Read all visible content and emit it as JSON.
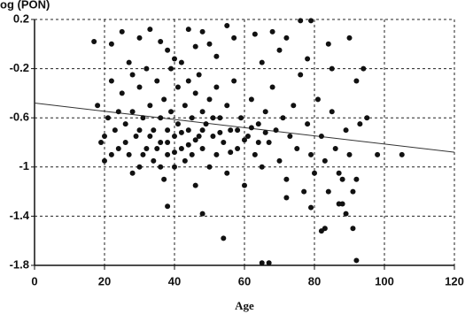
{
  "chart_data": {
    "type": "scatter",
    "y_label": "og (PON)",
    "x_label": "Age",
    "xlim": [
      0,
      120
    ],
    "xticks": [
      0,
      20,
      40,
      60,
      80,
      100,
      120
    ],
    "ylim": [
      -1.8,
      0.2
    ],
    "yticks": [
      0.2,
      -0.2,
      -0.6,
      -1,
      -1.4,
      -1.8
    ],
    "grid": true,
    "color": "#111111",
    "x": [
      17,
      22,
      25,
      27,
      30,
      33,
      36,
      38,
      40,
      44,
      46,
      48,
      50,
      52,
      55,
      57,
      63,
      65,
      68,
      70,
      72,
      76,
      79,
      78,
      84,
      85,
      90,
      92,
      94,
      18,
      19,
      20,
      21,
      22,
      23,
      24,
      25,
      26,
      27,
      28,
      28,
      29,
      30,
      30,
      31,
      32,
      32,
      33,
      34,
      34,
      35,
      36,
      36,
      37,
      37,
      38,
      38,
      39,
      39,
      40,
      40,
      41,
      41,
      42,
      42,
      43,
      43,
      44,
      44,
      45,
      45,
      46,
      46,
      47,
      47,
      48,
      48,
      49,
      50,
      50,
      51,
      52,
      52,
      53,
      54,
      55,
      55,
      56,
      57,
      58,
      59,
      60,
      61,
      62,
      63,
      64,
      65,
      66,
      67,
      68,
      69,
      70,
      71,
      72,
      73,
      74,
      75,
      76,
      77,
      78,
      79,
      80,
      81,
      82,
      83,
      84,
      85,
      86,
      87,
      88,
      89,
      90,
      91,
      92,
      93,
      95,
      98,
      105,
      20,
      22,
      24,
      26,
      28,
      30,
      31,
      33,
      35,
      36,
      38,
      40,
      42,
      44,
      46,
      48,
      51,
      53,
      56,
      58,
      60,
      62,
      64,
      66,
      38,
      48,
      54,
      65,
      67,
      79,
      82,
      83,
      87,
      89,
      91,
      92,
      72,
      88
    ],
    "values": [
      0.02,
      0,
      0.1,
      -0.15,
      0.05,
      0.12,
      0.02,
      -0.05,
      -0.12,
      0.12,
      -0.02,
      0.1,
      0,
      -0.1,
      0.15,
      0.05,
      0.08,
      -0.15,
      0.1,
      -0.05,
      0.05,
      0.19,
      0.19,
      -0.12,
      0,
      -0.2,
      0.05,
      -0.3,
      -0.2,
      -0.5,
      -0.8,
      -0.95,
      -0.6,
      -0.3,
      -0.7,
      -0.85,
      -0.4,
      -0.65,
      -0.9,
      -0.25,
      -0.55,
      -0.75,
      -1.0,
      -0.35,
      -0.6,
      -0.85,
      -0.2,
      -0.5,
      -0.7,
      -0.95,
      -0.3,
      -0.6,
      -0.8,
      -1.1,
      -0.45,
      -0.7,
      -0.9,
      -0.2,
      -0.55,
      -0.75,
      -1.0,
      -0.35,
      -0.65,
      -0.85,
      -0.15,
      -0.5,
      -0.95,
      -0.7,
      -0.3,
      -0.6,
      -0.9,
      -0.4,
      -1.15,
      -0.75,
      -0.25,
      -0.55,
      -0.85,
      -0.65,
      -0.45,
      -1.0,
      -0.75,
      -0.35,
      -0.9,
      -0.6,
      -0.8,
      -0.5,
      -1.05,
      -0.7,
      -0.3,
      -0.85,
      -0.6,
      -1.15,
      -0.75,
      -0.45,
      -0.9,
      -0.65,
      -1.0,
      -0.55,
      -0.8,
      -0.35,
      -0.7,
      -0.95,
      -0.6,
      -1.1,
      -0.75,
      -0.5,
      -0.85,
      -0.25,
      -1.2,
      -0.65,
      -0.9,
      -1.05,
      -0.45,
      -0.75,
      -0.95,
      -1.2,
      -0.55,
      -0.85,
      -1.05,
      -1.3,
      -0.7,
      -0.9,
      -1.2,
      -1.1,
      -0.65,
      -0.6,
      -0.9,
      -0.9,
      -0.75,
      -0.9,
      -0.55,
      -0.8,
      -1.05,
      -0.7,
      -0.9,
      -0.75,
      -0.85,
      -1.0,
      -0.8,
      -0.88,
      -0.72,
      -0.82,
      -0.78,
      -0.7,
      -0.6,
      -0.72,
      -0.88,
      -0.7,
      -0.78,
      -0.68,
      -0.8,
      -0.72,
      -1.32,
      -1.38,
      -1.58,
      -1.78,
      -1.78,
      -1.33,
      -1.52,
      -1.5,
      -1.3,
      -1.38,
      -1.5,
      -1.76,
      -1.25,
      -1.1
    ],
    "trend_line": {
      "x": [
        0,
        120
      ],
      "y": [
        -0.48,
        -0.88
      ],
      "color": "#333333"
    }
  }
}
